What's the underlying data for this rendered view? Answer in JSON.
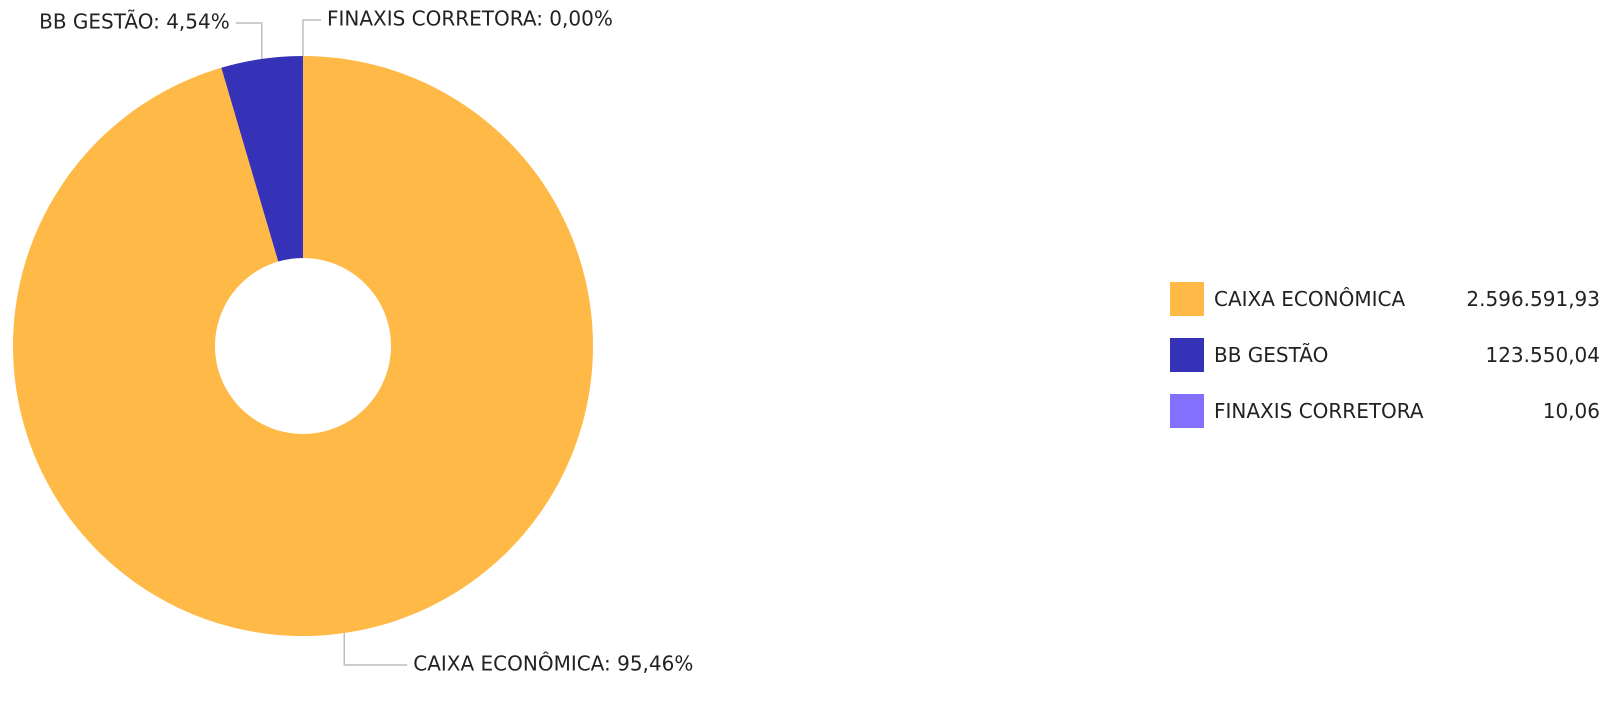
{
  "chart_data": {
    "type": "pie",
    "variant": "donut",
    "start_angle_deg": 0,
    "direction": "clockwise",
    "slices": [
      {
        "name": "CAIXA ECONÔMICA",
        "value": 2596591.93,
        "value_label": "2.596.591,93",
        "percent": 95.46,
        "label": "CAIXA ECONÔMICA: 95,46%",
        "color": "#FFB946"
      },
      {
        "name": "BB GESTÃO",
        "value": 123550.04,
        "value_label": "123.550,04",
        "percent": 4.54,
        "label": "BB GESTÃO: 4,54%",
        "color": "#3532B8"
      },
      {
        "name": "FINAXIS CORRETORA",
        "value": 10.06,
        "value_label": "10,06",
        "percent": 0.0,
        "label": "FINAXIS CORRETORA: 0,00%",
        "color": "#8470FF"
      }
    ],
    "legend": {
      "placement": "right"
    }
  }
}
